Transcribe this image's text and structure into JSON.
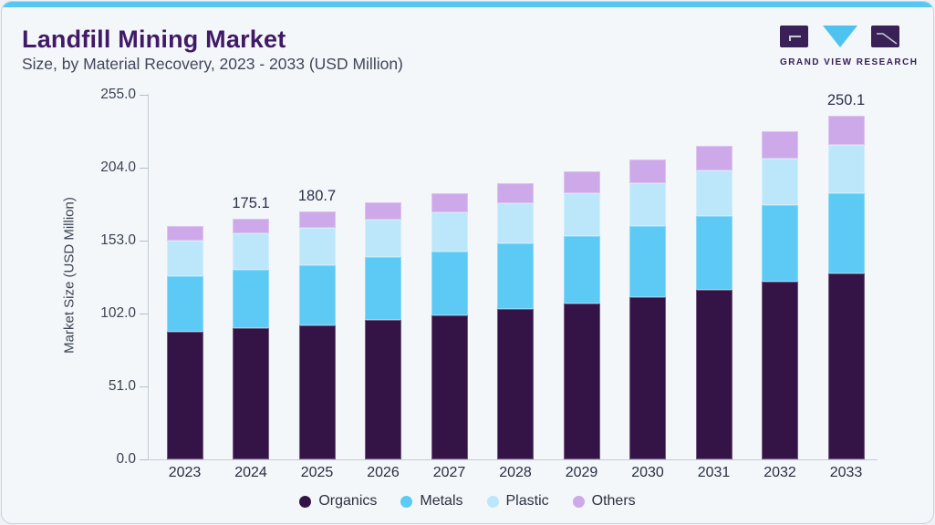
{
  "header": {
    "title": "Landfill Mining Market",
    "subtitle": "Size, by Material Recovery, 2023 - 2033 (USD Million)",
    "logo_text": "GRAND VIEW RESEARCH"
  },
  "colors": {
    "accent_top": "#55c7f3",
    "title_text": "#401a66",
    "logo_purple": "#392057",
    "logo_triangle": "#4ec3ef",
    "axis_line": "#c3ccd5",
    "card_background": "#f3f7fa"
  },
  "chart_data": {
    "type": "bar",
    "stacked": true,
    "title": "Landfill Mining Market Size, by Material Recovery, 2023 - 2033 (USD Million)",
    "xlabel": "",
    "ylabel": "Market Size (USD Million)",
    "ylim": [
      0,
      255
    ],
    "ytick_labels": [
      "0.0",
      "51.0",
      "102.0",
      "153.0",
      "204.0",
      "255.0"
    ],
    "grid": false,
    "legend_position": "bottom",
    "categories": [
      "2023",
      "2024",
      "2025",
      "2026",
      "2027",
      "2028",
      "2029",
      "2030",
      "2031",
      "2032",
      "2033"
    ],
    "series": [
      {
        "name": "Organics",
        "color": "#341447",
        "values": [
          93.1,
          95.3,
          97.5,
          101.7,
          105.1,
          109.8,
          113.7,
          118.4,
          123.7,
          129.7,
          135.6
        ]
      },
      {
        "name": "Metals",
        "color": "#5ccaf4",
        "values": [
          40.6,
          42.6,
          43.9,
          45.3,
          45.9,
          47.2,
          49.2,
          51.2,
          53.2,
          55.2,
          57.9
        ]
      },
      {
        "name": "Plastic",
        "color": "#bce7fa",
        "values": [
          25.3,
          26.6,
          27.3,
          27.3,
          28.6,
          29.3,
          30.6,
          31.3,
          33.3,
          33.9,
          35.3
        ]
      },
      {
        "name": "Others",
        "color": "#cda9ea",
        "values": [
          10.6,
          10.6,
          12.0,
          12.6,
          14.0,
          14.6,
          16.0,
          17.3,
          18.0,
          20.0,
          21.3
        ]
      }
    ],
    "totals": [
      169.6,
      175.1,
      180.7,
      186.9,
      193.6,
      200.9,
      209.5,
      218.2,
      228.2,
      238.8,
      250.1
    ],
    "bar_labels": {
      "2024": "175.1",
      "2025": "180.7",
      "2033": "250.1"
    }
  }
}
